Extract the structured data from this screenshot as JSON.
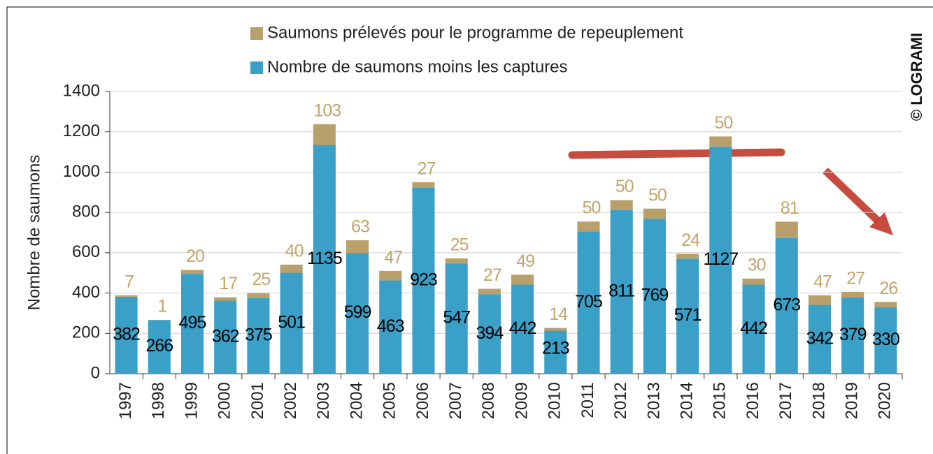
{
  "chart_data": {
    "type": "stacked_bar",
    "ylabel": "Nombre de saumons",
    "credit": "© LOGRAMI",
    "categories": [
      "1997",
      "1998",
      "1999",
      "2000",
      "2001",
      "2002",
      "2003",
      "2004",
      "2005",
      "2006",
      "2007",
      "2008",
      "2009",
      "2010",
      "2011",
      "2012",
      "2013",
      "2014",
      "2015",
      "2016",
      "2017",
      "2018",
      "2019",
      "2020"
    ],
    "series": [
      {
        "name": "Saumons prélevés pour le programme de repeuplement",
        "color": "#b9a06a",
        "label_color": "#c4a46a",
        "values": [
          7,
          1,
          20,
          17,
          25,
          40,
          103,
          63,
          47,
          27,
          25,
          27,
          49,
          14,
          50,
          50,
          50,
          24,
          50,
          30,
          81,
          47,
          27,
          26
        ]
      },
      {
        "name": "Nombre de saumons moins les captures",
        "color": "#3aa0c8",
        "label_color": "#000000",
        "values": [
          382,
          266,
          495,
          362,
          375,
          501,
          1135,
          599,
          463,
          923,
          547,
          394,
          442,
          213,
          705,
          811,
          769,
          571,
          1127,
          442,
          673,
          342,
          379,
          330
        ]
      }
    ],
    "ylim": [
      0,
      1400
    ],
    "yticks": [
      0,
      200,
      400,
      600,
      800,
      1000,
      1200,
      1400
    ],
    "grid": true
  }
}
